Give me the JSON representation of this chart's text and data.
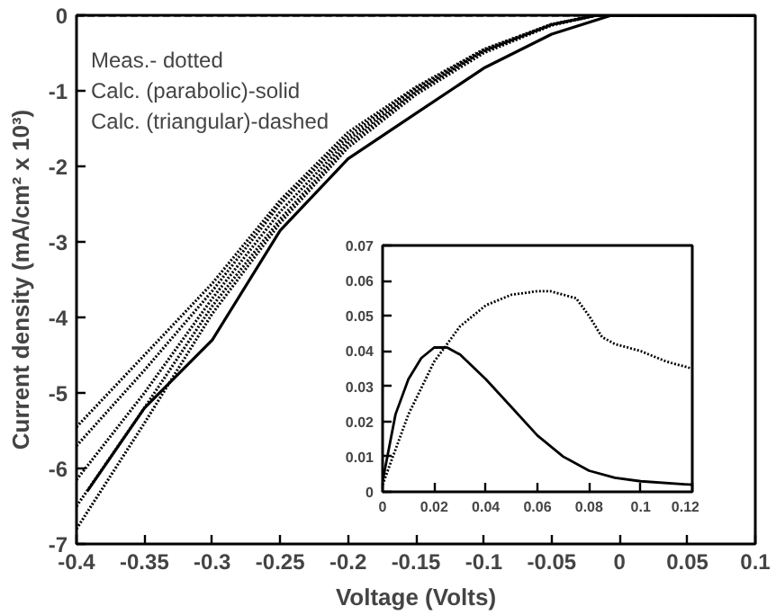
{
  "chart_data": [
    {
      "type": "line",
      "xlabel": "Voltage (Volts)",
      "ylabel": "Current density (mA/cm² x 10³)",
      "xlim": [
        -0.4,
        0.1
      ],
      "ylim": [
        -7,
        0
      ],
      "xticks": [
        -0.4,
        -0.35,
        -0.3,
        -0.25,
        -0.2,
        -0.15,
        -0.1,
        -0.05,
        0,
        0.05,
        0.1
      ],
      "yticks": [
        -7,
        -6,
        -5,
        -4,
        -3,
        -2,
        -1,
        0
      ],
      "grid": false,
      "annotations": [
        "Meas.- dotted",
        "Calc. (parabolic)-solid",
        "Calc. (triangular)-dashed"
      ],
      "series": [
        {
          "color": "#000000",
          "line_style": "dotted",
          "x": [
            -0.4,
            -0.35,
            -0.3,
            -0.25,
            -0.2,
            -0.15,
            -0.1,
            -0.05,
            -0.017,
            0.1
          ],
          "values": [
            -5.45,
            -4.5,
            -3.55,
            -2.45,
            -1.55,
            -0.95,
            -0.45,
            -0.12,
            0,
            0
          ]
        },
        {
          "color": "#000000",
          "line_style": "dotted",
          "x": [
            -0.4,
            -0.35,
            -0.3,
            -0.25,
            -0.2,
            -0.15,
            -0.1,
            -0.05,
            -0.017,
            0.1
          ],
          "values": [
            -5.7,
            -4.7,
            -3.65,
            -2.5,
            -1.6,
            -0.97,
            -0.46,
            -0.12,
            0,
            0
          ]
        },
        {
          "color": "#000000",
          "line_style": "dotted",
          "x": [
            -0.4,
            -0.35,
            -0.3,
            -0.25,
            -0.2,
            -0.15,
            -0.1,
            -0.05,
            -0.017,
            0.1
          ],
          "values": [
            -6.15,
            -5.0,
            -3.75,
            -2.6,
            -1.65,
            -1.0,
            -0.47,
            -0.12,
            0,
            0
          ]
        },
        {
          "color": "#000000",
          "line_style": "dotted",
          "x": [
            -0.4,
            -0.35,
            -0.3,
            -0.25,
            -0.2,
            -0.15,
            -0.1,
            -0.05,
            -0.017,
            0.1
          ],
          "values": [
            -6.5,
            -5.2,
            -3.85,
            -2.7,
            -1.7,
            -1.02,
            -0.48,
            -0.13,
            0,
            0
          ]
        },
        {
          "color": "#000000",
          "line_style": "dotted",
          "x": [
            -0.4,
            -0.35,
            -0.3,
            -0.25,
            -0.2,
            -0.15,
            -0.1,
            -0.05,
            -0.017,
            0.1
          ],
          "values": [
            -6.8,
            -5.4,
            -3.95,
            -2.75,
            -1.75,
            -1.05,
            -0.5,
            -0.13,
            0,
            0
          ]
        },
        {
          "color": "#000000",
          "line_style": "solid",
          "x": [
            -0.392,
            -0.35,
            -0.3,
            -0.25,
            -0.2,
            -0.15,
            -0.1,
            -0.05,
            -0.006,
            0.1
          ],
          "values": [
            -6.3,
            -5.2,
            -4.3,
            -2.85,
            -1.9,
            -1.3,
            -0.7,
            -0.25,
            0,
            0
          ]
        },
        {
          "color": "#000000",
          "line_style": "dashed",
          "x": [
            -0.4,
            0.1
          ],
          "values": [
            0,
            0
          ]
        }
      ]
    },
    {
      "type": "line",
      "xlim": [
        0,
        0.12
      ],
      "ylim": [
        0,
        0.07
      ],
      "xticks": [
        0,
        0.02,
        0.04,
        0.06,
        0.08,
        0.1,
        0.12
      ],
      "yticks": [
        0,
        0.01,
        0.02,
        0.03,
        0.04,
        0.05,
        0.06,
        0.07
      ],
      "grid": false,
      "series": [
        {
          "color": "#000000",
          "line_style": "solid",
          "x": [
            0,
            0.005,
            0.01,
            0.015,
            0.02,
            0.025,
            0.03,
            0.04,
            0.05,
            0.06,
            0.07,
            0.08,
            0.09,
            0.1,
            0.12
          ],
          "values": [
            0.003,
            0.022,
            0.032,
            0.038,
            0.041,
            0.041,
            0.039,
            0.032,
            0.024,
            0.016,
            0.01,
            0.006,
            0.004,
            0.003,
            0.002
          ]
        },
        {
          "color": "#000000",
          "line_style": "dotted",
          "x": [
            0,
            0.01,
            0.02,
            0.03,
            0.04,
            0.05,
            0.06,
            0.065,
            0.07,
            0.075,
            0.08,
            0.085,
            0.09,
            0.1,
            0.11,
            0.12
          ],
          "values": [
            0.002,
            0.022,
            0.037,
            0.047,
            0.053,
            0.056,
            0.057,
            0.057,
            0.056,
            0.055,
            0.05,
            0.044,
            0.042,
            0.04,
            0.037,
            0.035
          ]
        }
      ]
    }
  ]
}
